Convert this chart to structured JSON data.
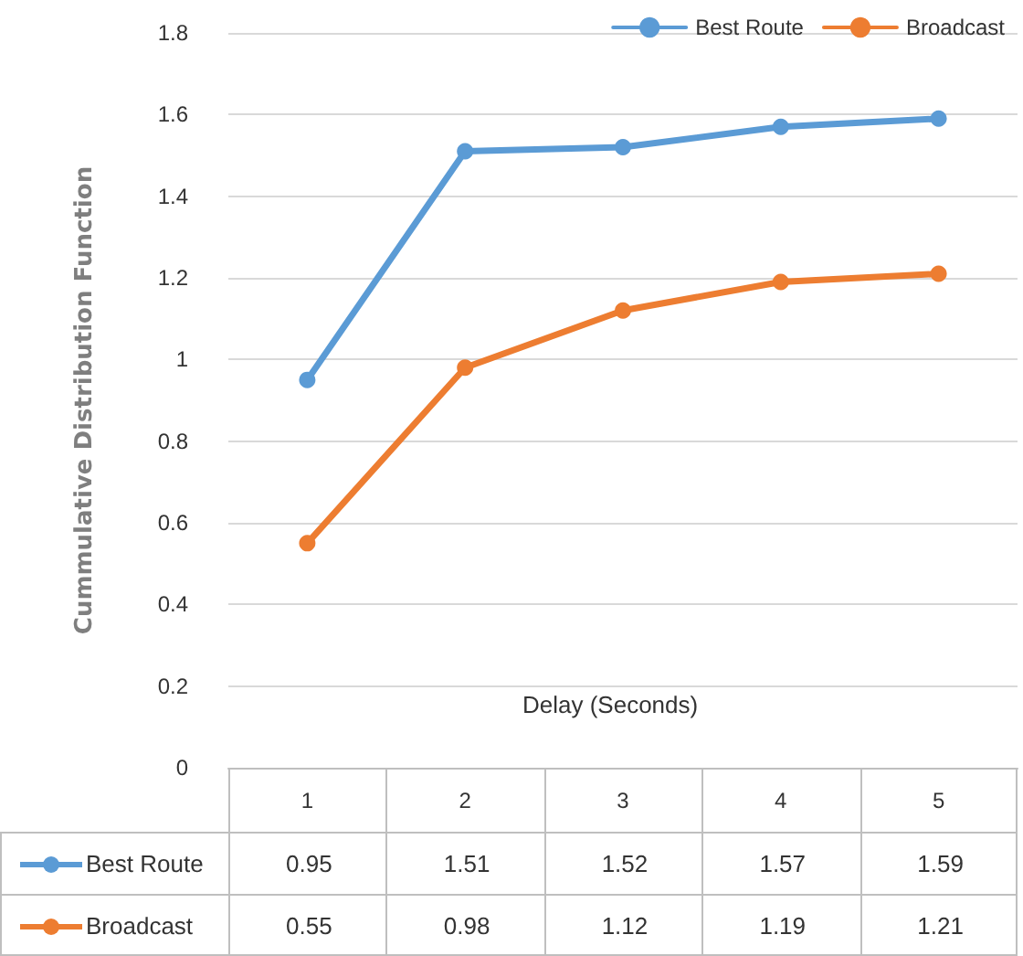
{
  "chart_data": {
    "type": "line",
    "xlabel": "Delay (Seconds)",
    "ylabel": "Cummulative Distribution Function",
    "categories": [
      "1",
      "2",
      "3",
      "4",
      "5"
    ],
    "series": [
      {
        "name": "Best Route",
        "color": "#5b9bd5",
        "values": [
          0.95,
          1.51,
          1.52,
          1.57,
          1.59
        ]
      },
      {
        "name": "Broadcast",
        "color": "#ed7d31",
        "values": [
          0.55,
          0.98,
          1.12,
          1.19,
          1.21
        ]
      }
    ],
    "ylim": [
      0,
      1.8
    ],
    "yticks": [
      0,
      0.2,
      0.4,
      0.6,
      0.8,
      1,
      1.2,
      1.4,
      1.6,
      1.8
    ],
    "grid": "y",
    "legend": "top right",
    "marker": "circle",
    "line_style": "solid",
    "data_labels": true
  }
}
